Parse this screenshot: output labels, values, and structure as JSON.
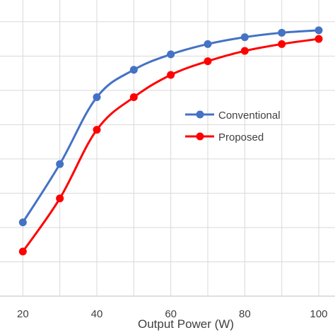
{
  "chart_data": {
    "type": "line",
    "title": "",
    "xlabel": "Output Power (W)",
    "ylabel": "",
    "x_ticks": [
      "20",
      "40",
      "60",
      "80",
      "100"
    ],
    "xlim": [
      10,
      100
    ],
    "ylim": [
      0,
      9.5
    ],
    "grid": true,
    "legend_position": "center-right",
    "x": [
      20,
      30,
      40,
      50,
      60,
      70,
      80,
      90,
      100
    ],
    "series": [
      {
        "name": "Conventional",
        "color": "#4472C4",
        "values": [
          2.15,
          3.85,
          5.8,
          6.6,
          7.05,
          7.35,
          7.55,
          7.68,
          7.75
        ]
      },
      {
        "name": "Proposed",
        "color": "#FF0000",
        "values": [
          1.3,
          2.85,
          4.85,
          5.8,
          6.45,
          6.85,
          7.15,
          7.35,
          7.5
        ]
      }
    ]
  }
}
